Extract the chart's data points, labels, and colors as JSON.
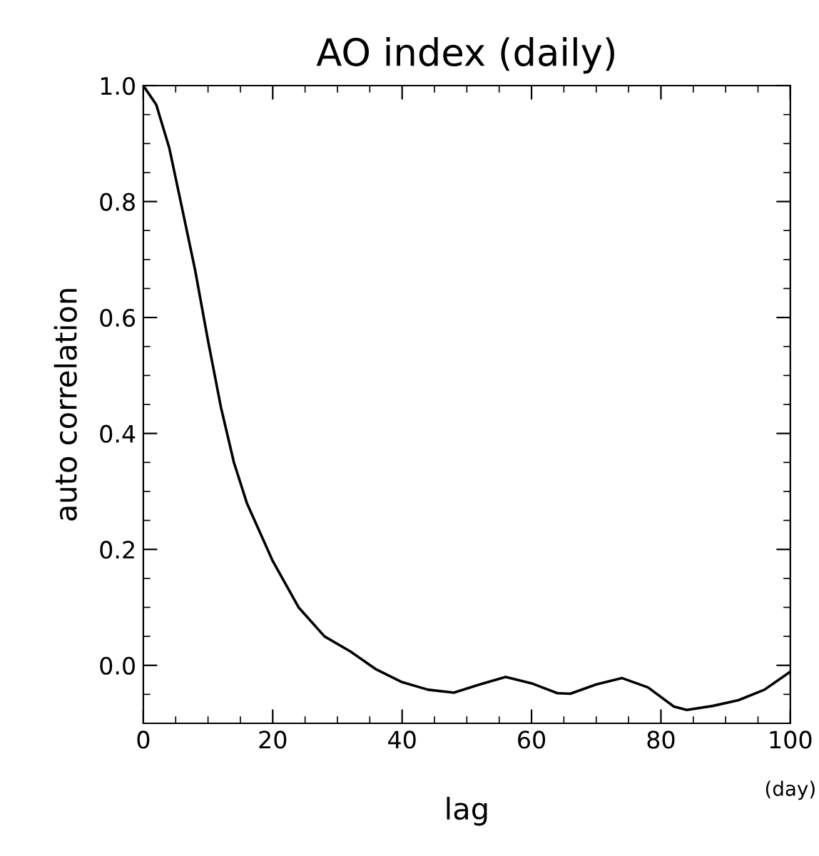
{
  "chart_data": {
    "type": "line",
    "title": "AO index (daily)",
    "xlabel": "lag",
    "ylabel": "auto correlation",
    "annotations": [
      "(day)"
    ],
    "x": [
      0,
      2,
      4,
      6,
      8,
      10,
      12,
      14,
      16,
      20,
      24,
      28,
      32,
      36,
      40,
      44,
      48,
      52,
      56,
      60,
      64,
      66,
      70,
      74,
      78,
      82,
      84,
      88,
      92,
      96,
      100
    ],
    "series": [
      {
        "color": "#000000",
        "values": [
          1.0,
          0.967,
          0.893,
          0.788,
          0.682,
          0.56,
          0.445,
          0.35,
          0.28,
          0.18,
          0.1,
          0.05,
          0.024,
          -0.007,
          -0.029,
          -0.042,
          -0.047,
          -0.033,
          -0.02,
          -0.031,
          -0.048,
          -0.049,
          -0.033,
          -0.022,
          -0.038,
          -0.071,
          -0.077,
          -0.07,
          -0.06,
          -0.042,
          -0.011
        ]
      }
    ],
    "xlim": [
      0,
      100
    ],
    "ylim": [
      -0.1,
      1.0
    ],
    "xticks": [
      0,
      20,
      40,
      60,
      80,
      100
    ],
    "yticks": [
      {
        "value": 0.0,
        "label": "0.0"
      },
      {
        "value": 0.2,
        "label": "0.2"
      },
      {
        "value": 0.4,
        "label": "0.4"
      },
      {
        "value": 0.6,
        "label": "0.6"
      },
      {
        "value": 0.8,
        "label": "0.8"
      },
      {
        "value": 1.0,
        "label": "1.0"
      }
    ],
    "grid": false,
    "legend": false,
    "marker": "none",
    "line_style": "solid"
  }
}
